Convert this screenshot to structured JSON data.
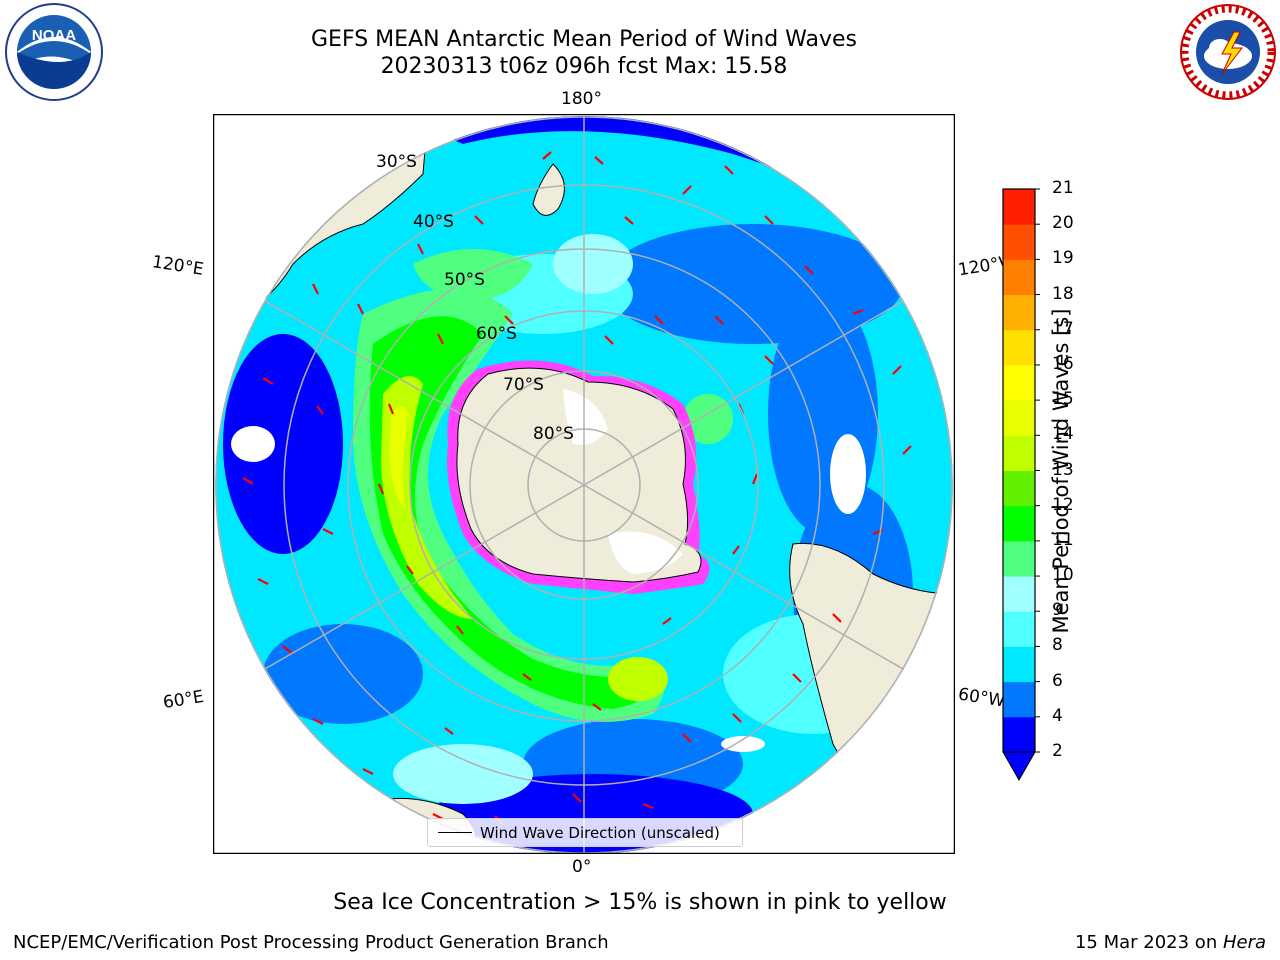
{
  "header": {
    "title_line1": "GEFS MEAN Antarctic Mean Period of Wind Waves",
    "title_line2": "20230313 t06z 096h fcst   Max: 15.58"
  },
  "logos": {
    "left": "noaa-logo",
    "right": "national-weather-service-logo"
  },
  "map": {
    "longitude_labels": {
      "top": "180°",
      "bottom": "0°",
      "upper_left": "120°E",
      "lower_left": "60°E",
      "upper_right": "120°W",
      "lower_right": "60°W"
    },
    "latitude_labels": [
      "30°S",
      "40°S",
      "50°S",
      "60°S",
      "70°S",
      "80°S"
    ],
    "legend_label": "Wind Wave Direction (unscaled)",
    "colors": {
      "land": "#efecd9",
      "ocean_low": "#00ffff",
      "ice": "#ff40ff",
      "arrows": "#ff0000"
    }
  },
  "colorbar": {
    "label": "Mean Period of Wind Waves [s]",
    "ticks": [
      "2",
      "4",
      "6",
      "8",
      "9",
      "10",
      "11",
      "12",
      "13",
      "14",
      "15",
      "16",
      "17",
      "18",
      "19",
      "20",
      "21"
    ],
    "colors": [
      "#0000ff",
      "#0078ff",
      "#00e8ff",
      "#50ffff",
      "#a0ffff",
      "#50ff80",
      "#00ff00",
      "#60f000",
      "#c0ff00",
      "#e8ff00",
      "#ffff00",
      "#ffe000",
      "#ffb000",
      "#ff8000",
      "#ff5000",
      "#ff2000"
    ]
  },
  "footer": {
    "note": "Sea Ice Concentration > 15% is shown in pink to yellow",
    "left": "NCEP/EMC/Verification Post Processing Product Generation Branch",
    "right_date": "15 Mar 2023 on ",
    "right_host": "Hera"
  }
}
